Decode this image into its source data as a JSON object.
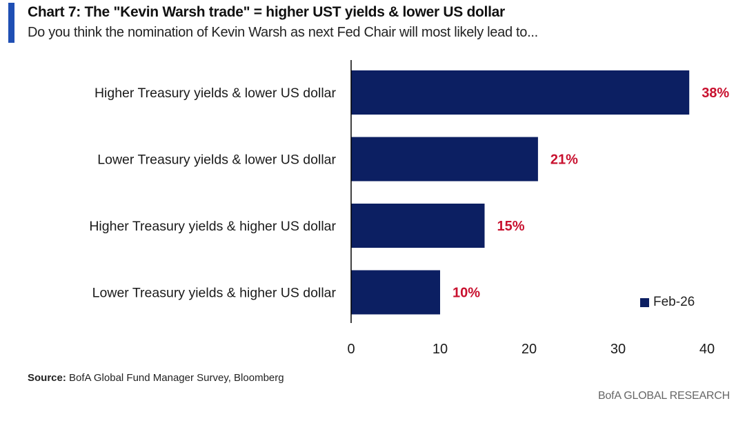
{
  "header": {
    "title": "Chart 7: The \"Kevin Warsh trade\" = higher UST yields & lower US dollar",
    "subtitle": "Do you think the nomination of Kevin Warsh as next Fed Chair will most likely lead to..."
  },
  "chart_data": {
    "type": "bar",
    "orientation": "horizontal",
    "categories": [
      "Higher Treasury yields & lower US dollar",
      "Lower Treasury yields & lower US dollar",
      "Higher Treasury yields & higher US dollar",
      "Lower Treasury yields & higher US dollar"
    ],
    "series": [
      {
        "name": "Feb-26",
        "values": [
          38,
          21,
          15,
          10
        ],
        "labels": [
          "38%",
          "21%",
          "15%",
          "10%"
        ],
        "color": "#0c1f62"
      }
    ],
    "label_color": "#c8102e",
    "xlim": [
      0,
      40
    ],
    "xticks": [
      "0",
      "10",
      "20",
      "30",
      "40"
    ],
    "xlabel": "",
    "ylabel": "",
    "grid": false,
    "legend_position": "bottom-right"
  },
  "footer": {
    "source_label": "Source:",
    "source_text": "BofA Global Fund Manager Survey, Bloomberg",
    "brand": "BofA GLOBAL RESEARCH"
  }
}
